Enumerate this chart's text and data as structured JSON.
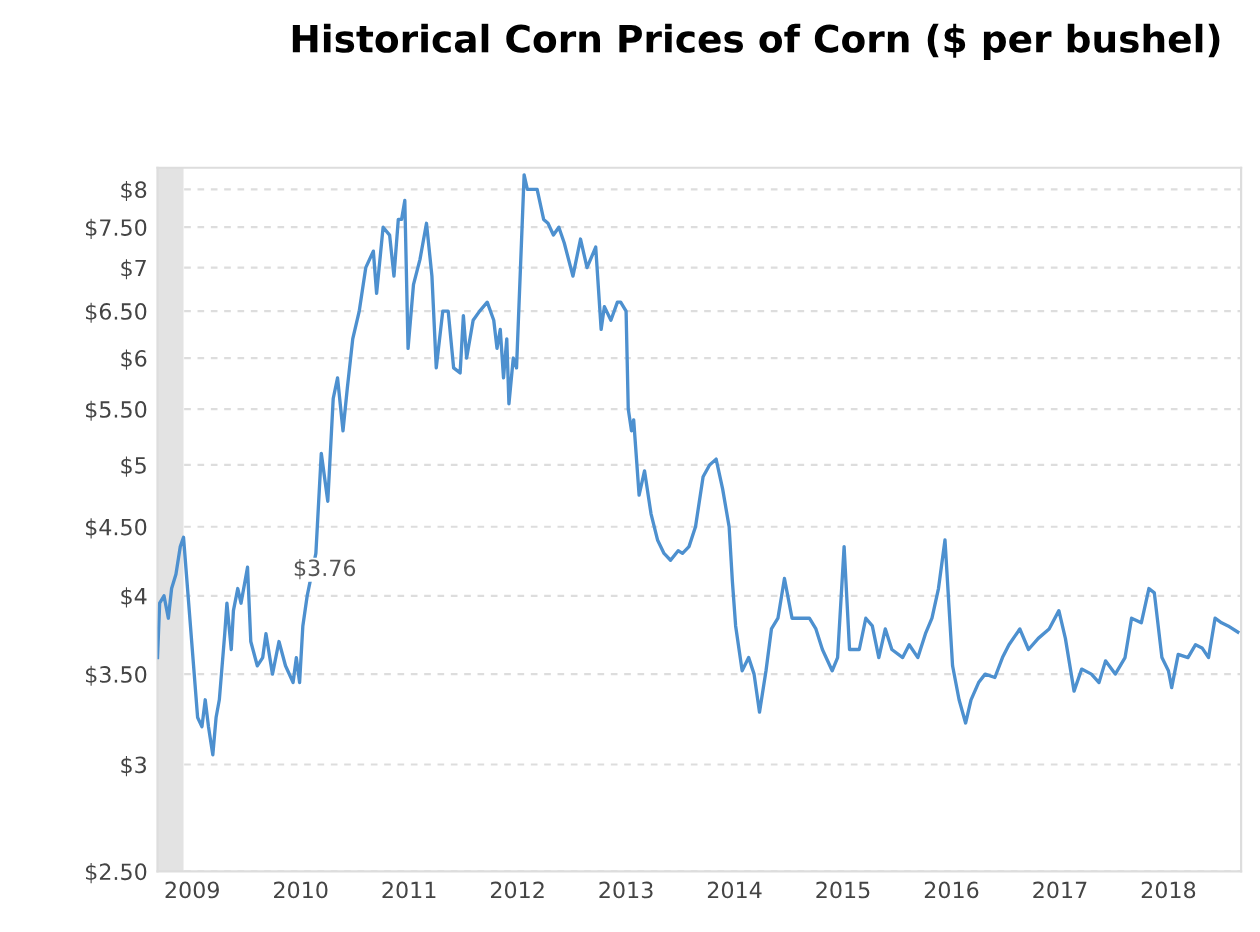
{
  "chart_data": {
    "type": "line",
    "title": "Historical Corn Prices of Corn ($ per bushel)",
    "x": [
      2008.68,
      2008.7,
      2008.74,
      2008.78,
      2008.81,
      2008.85,
      2008.89,
      2008.92,
      2009.05,
      2009.09,
      2009.12,
      2009.15,
      2009.19,
      2009.22,
      2009.25,
      2009.3,
      2009.32,
      2009.36,
      2009.38,
      2009.42,
      2009.45,
      2009.51,
      2009.54,
      2009.6,
      2009.65,
      2009.68,
      2009.74,
      2009.8,
      2009.86,
      2009.93,
      2009.96,
      2009.99,
      2010.02,
      2010.06,
      2010.14,
      2010.19,
      2010.25,
      2010.3,
      2010.34,
      2010.39,
      2010.43,
      2010.48,
      2010.54,
      2010.6,
      2010.67,
      2010.7,
      2010.76,
      2010.82,
      2010.86,
      2010.9,
      2010.93,
      2010.96,
      2010.99,
      2011.04,
      2011.1,
      2011.16,
      2011.21,
      2011.25,
      2011.31,
      2011.36,
      2011.41,
      2011.47,
      2011.5,
      2011.53,
      2011.59,
      2011.65,
      2011.72,
      2011.78,
      2011.81,
      2011.84,
      2011.87,
      2011.9,
      2011.92,
      2011.96,
      2011.99,
      2012.06,
      2012.09,
      2012.18,
      2012.24,
      2012.28,
      2012.33,
      2012.38,
      2012.43,
      2012.51,
      2012.58,
      2012.64,
      2012.72,
      2012.77,
      2012.8,
      2012.86,
      2012.92,
      2012.95,
      2013.0,
      2013.02,
      2013.05,
      2013.07,
      2013.12,
      2013.17,
      2013.23,
      2013.29,
      2013.35,
      2013.41,
      2013.48,
      2013.52,
      2013.58,
      2013.64,
      2013.71,
      2013.77,
      2013.83,
      2013.89,
      2013.95,
      2013.98,
      2014.01,
      2014.07,
      2014.13,
      2014.18,
      2014.23,
      2014.29,
      2014.34,
      2014.4,
      2014.46,
      2014.53,
      2014.6,
      2014.69,
      2014.75,
      2014.81,
      2014.9,
      2014.95,
      2015.01,
      2015.06,
      2015.15,
      2015.21,
      2015.27,
      2015.33,
      2015.39,
      2015.45,
      2015.55,
      2015.61,
      2015.69,
      2015.76,
      2015.82,
      2015.88,
      2015.94,
      2016.01,
      2016.07,
      2016.13,
      2016.18,
      2016.25,
      2016.31,
      2016.4,
      2016.47,
      2016.53,
      2016.63,
      2016.71,
      2016.8,
      2016.9,
      2016.99,
      2017.05,
      2017.13,
      2017.2,
      2017.29,
      2017.36,
      2017.42,
      2017.51,
      2017.6,
      2017.66,
      2017.75,
      2017.82,
      2017.87,
      2017.94,
      2018.0,
      2018.03,
      2018.09,
      2018.18,
      2018.25,
      2018.31,
      2018.37,
      2018.43,
      2018.49,
      2018.55,
      2018.64
    ],
    "series": [
      {
        "color": "#4d90cf",
        "values": [
          3.6,
          3.95,
          4.0,
          3.85,
          4.05,
          4.15,
          4.35,
          4.42,
          3.25,
          3.2,
          3.35,
          3.2,
          3.05,
          3.25,
          3.35,
          3.75,
          3.95,
          3.65,
          3.9,
          4.05,
          3.95,
          4.2,
          3.7,
          3.55,
          3.6,
          3.75,
          3.5,
          3.7,
          3.55,
          3.45,
          3.6,
          3.45,
          3.8,
          4.0,
          4.3,
          5.1,
          4.7,
          5.6,
          5.8,
          5.3,
          5.7,
          6.2,
          6.5,
          7.0,
          7.2,
          6.7,
          7.5,
          7.4,
          6.9,
          7.6,
          7.6,
          7.85,
          6.1,
          6.8,
          7.1,
          7.55,
          6.9,
          5.9,
          6.5,
          6.5,
          5.9,
          5.85,
          6.45,
          6.0,
          6.4,
          6.5,
          6.6,
          6.4,
          6.1,
          6.3,
          5.8,
          6.2,
          5.55,
          6.0,
          5.9,
          8.2,
          8.0,
          8.0,
          7.6,
          7.55,
          7.4,
          7.5,
          7.3,
          6.9,
          7.35,
          7.0,
          7.25,
          6.3,
          6.55,
          6.4,
          6.6,
          6.6,
          6.5,
          5.5,
          5.3,
          5.4,
          4.75,
          4.95,
          4.6,
          4.4,
          4.3,
          4.25,
          4.32,
          4.3,
          4.35,
          4.5,
          4.9,
          5.0,
          5.05,
          4.8,
          4.5,
          4.1,
          3.8,
          3.52,
          3.6,
          3.5,
          3.28,
          3.52,
          3.78,
          3.85,
          4.12,
          3.85,
          3.85,
          3.85,
          3.78,
          3.65,
          3.52,
          3.6,
          4.35,
          3.65,
          3.65,
          3.85,
          3.8,
          3.6,
          3.78,
          3.65,
          3.6,
          3.68,
          3.6,
          3.75,
          3.85,
          4.05,
          4.4,
          3.55,
          3.35,
          3.22,
          3.35,
          3.45,
          3.5,
          3.48,
          3.6,
          3.68,
          3.78,
          3.65,
          3.72,
          3.78,
          3.9,
          3.72,
          3.4,
          3.53,
          3.5,
          3.45,
          3.58,
          3.5,
          3.6,
          3.85,
          3.82,
          4.05,
          4.02,
          3.6,
          3.52,
          3.42,
          3.62,
          3.6,
          3.68,
          3.66,
          3.6,
          3.85,
          3.82,
          3.8,
          3.76
        ]
      }
    ],
    "log": "y",
    "xlim": [
      2008.68,
      2018.67
    ],
    "xticks": [
      2009,
      2010,
      2011,
      2012,
      2013,
      2014,
      2015,
      2016,
      2017,
      2018
    ],
    "ylim": [
      2.5,
      8.3
    ],
    "yticks": [
      {
        "value": 2.5,
        "label": "$2.50"
      },
      {
        "value": 3,
        "label": "$3"
      },
      {
        "value": 3.5,
        "label": "$3.50"
      },
      {
        "value": 4,
        "label": "$4"
      },
      {
        "value": 4.5,
        "label": "$4.50"
      },
      {
        "value": 5,
        "label": "$5"
      },
      {
        "value": 5.5,
        "label": "$5.50"
      },
      {
        "value": 6,
        "label": "$6"
      },
      {
        "value": 6.5,
        "label": "$6.50"
      },
      {
        "value": 7,
        "label": "$7"
      },
      {
        "value": 7.5,
        "label": "$7.50"
      },
      {
        "value": 8,
        "label": "$8"
      }
    ],
    "grid": "y",
    "line_style": "solid",
    "marker": "none",
    "bands": [
      {
        "axis": "x",
        "from": 2008.68,
        "to": 2008.92,
        "color": "#e3e3e3"
      }
    ],
    "annotations": [
      "$3.76"
    ]
  }
}
